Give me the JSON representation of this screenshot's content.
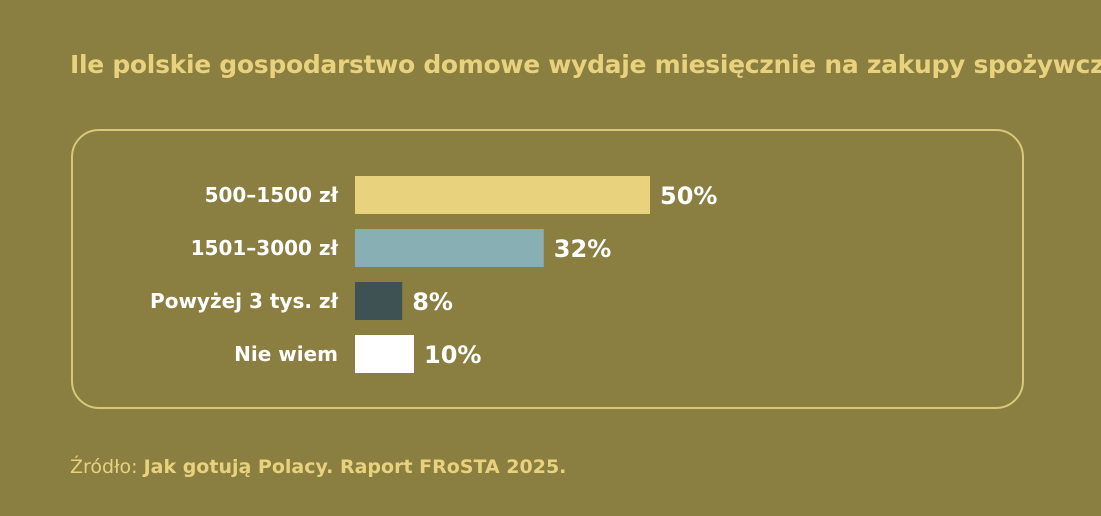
{
  "title": "Ile polskie gospodarstwo domowe wydaje miesięcznie na zakupy spożywcze?",
  "source": {
    "prefix": "Źródło: ",
    "text": "Jak gotują Polacy. Raport FRoSTA 2025."
  },
  "colors": {
    "background": "#8a7f41",
    "accent": "#e8d27e",
    "panel_border": "#d9c77a"
  },
  "chart_data": {
    "type": "bar",
    "orientation": "horizontal",
    "categories": [
      "500–1500 zł",
      "1501–3000 zł",
      "Powyżej 3 tys. zł",
      "Nie wiem"
    ],
    "values": [
      50,
      32,
      8,
      10
    ],
    "value_labels": [
      "50%",
      "32%",
      "8%",
      "10%"
    ],
    "bar_colors": [
      "#e8d27e",
      "#88afb4",
      "#3e5254",
      "#ffffff"
    ],
    "unit": "%",
    "xlim": [
      0,
      100
    ],
    "grid": false,
    "legend": "none"
  }
}
